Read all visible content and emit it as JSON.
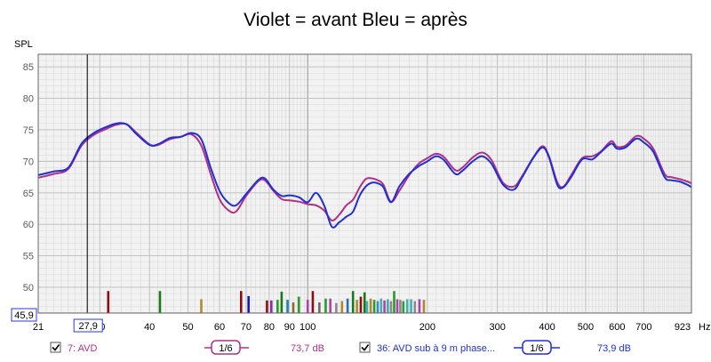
{
  "colors": {
    "before": "#b03085",
    "after": "#1f2fd4",
    "plot_bg": "#f2f2f2",
    "grid_major": "#bdbdbd",
    "grid_minor": "#d8d8d8",
    "label_text": "#3a3ad0"
  },
  "chart_data": {
    "type": "line",
    "title": "Violet = avant Bleu = après",
    "ylabel": "SPL",
    "xunit": "Hz",
    "x_scale": "log",
    "xlim": [
      21,
      923
    ],
    "ylim": [
      45.9,
      87
    ],
    "cursor": {
      "x_label": "27,9",
      "y_label": "45,9",
      "x": 27.9
    },
    "x_ticks": [
      {
        "v": 21,
        "label": "21"
      },
      {
        "v": 30,
        "label": "30"
      },
      {
        "v": 40,
        "label": "40"
      },
      {
        "v": 50,
        "label": "50"
      },
      {
        "v": 60,
        "label": "60"
      },
      {
        "v": 70,
        "label": "70"
      },
      {
        "v": 80,
        "label": "80"
      },
      {
        "v": 90,
        "label": "90"
      },
      {
        "v": 100,
        "label": "100"
      },
      {
        "v": 200,
        "label": "200"
      },
      {
        "v": 300,
        "label": "300"
      },
      {
        "v": 400,
        "label": "400"
      },
      {
        "v": 500,
        "label": "500"
      },
      {
        "v": 600,
        "label": "600"
      },
      {
        "v": 700,
        "label": "700"
      },
      {
        "v": 923,
        "label": "923"
      }
    ],
    "y_ticks": [
      50,
      55,
      60,
      65,
      70,
      75,
      80,
      85
    ],
    "series": [
      {
        "name": "7: AVD",
        "color_key": "before",
        "points": [
          [
            21,
            67.4
          ],
          [
            23,
            68.0
          ],
          [
            25,
            68.8
          ],
          [
            27,
            72.5
          ],
          [
            29,
            74.2
          ],
          [
            31,
            75.1
          ],
          [
            33,
            75.8
          ],
          [
            35,
            75.9
          ],
          [
            37,
            74.6
          ],
          [
            40,
            72.7
          ],
          [
            42,
            72.6
          ],
          [
            45,
            73.5
          ],
          [
            48,
            73.9
          ],
          [
            51,
            74.3
          ],
          [
            54,
            72.5
          ],
          [
            57,
            68.0
          ],
          [
            60,
            64.0
          ],
          [
            63,
            62.3
          ],
          [
            66,
            62.0
          ],
          [
            70,
            64.5
          ],
          [
            75,
            66.8
          ],
          [
            78,
            67.0
          ],
          [
            82,
            65.3
          ],
          [
            86,
            64.0
          ],
          [
            90,
            63.8
          ],
          [
            95,
            63.6
          ],
          [
            100,
            63.2
          ],
          [
            105,
            63.0
          ],
          [
            110,
            62.2
          ],
          [
            115,
            60.6
          ],
          [
            120,
            61.5
          ],
          [
            125,
            63.0
          ],
          [
            130,
            63.9
          ],
          [
            135,
            65.8
          ],
          [
            140,
            67.2
          ],
          [
            145,
            67.3
          ],
          [
            150,
            67.0
          ],
          [
            155,
            66.3
          ],
          [
            162,
            63.6
          ],
          [
            170,
            65.3
          ],
          [
            180,
            67.8
          ],
          [
            190,
            69.6
          ],
          [
            200,
            70.5
          ],
          [
            210,
            71.2
          ],
          [
            220,
            70.7
          ],
          [
            235,
            68.6
          ],
          [
            245,
            69.0
          ],
          [
            260,
            70.6
          ],
          [
            275,
            71.4
          ],
          [
            290,
            70.2
          ],
          [
            310,
            66.6
          ],
          [
            330,
            66.0
          ],
          [
            345,
            67.5
          ],
          [
            370,
            70.7
          ],
          [
            390,
            72.4
          ],
          [
            405,
            70.7
          ],
          [
            425,
            66.6
          ],
          [
            440,
            66.0
          ],
          [
            460,
            67.8
          ],
          [
            490,
            70.5
          ],
          [
            520,
            70.8
          ],
          [
            545,
            71.5
          ],
          [
            580,
            73.2
          ],
          [
            600,
            72.3
          ],
          [
            630,
            72.5
          ],
          [
            670,
            74.0
          ],
          [
            700,
            73.6
          ],
          [
            740,
            72.0
          ],
          [
            790,
            68.0
          ],
          [
            820,
            67.5
          ],
          [
            860,
            67.2
          ],
          [
            900,
            66.8
          ],
          [
            923,
            66.5
          ]
        ]
      },
      {
        "name": "36: AVD sub à 9 m phase...",
        "color_key": "after",
        "points": [
          [
            21,
            67.8
          ],
          [
            23,
            68.4
          ],
          [
            25,
            69.0
          ],
          [
            27,
            72.8
          ],
          [
            29,
            74.5
          ],
          [
            31,
            75.4
          ],
          [
            33,
            76.0
          ],
          [
            35,
            75.9
          ],
          [
            37,
            74.4
          ],
          [
            40,
            72.6
          ],
          [
            42,
            72.7
          ],
          [
            45,
            73.7
          ],
          [
            48,
            73.9
          ],
          [
            51,
            74.5
          ],
          [
            54,
            73.5
          ],
          [
            57,
            69.0
          ],
          [
            60,
            65.3
          ],
          [
            63,
            63.5
          ],
          [
            66,
            63.0
          ],
          [
            70,
            64.8
          ],
          [
            75,
            67.0
          ],
          [
            78,
            67.3
          ],
          [
            82,
            65.5
          ],
          [
            86,
            64.5
          ],
          [
            90,
            64.6
          ],
          [
            95,
            64.3
          ],
          [
            100,
            63.5
          ],
          [
            105,
            65.0
          ],
          [
            110,
            63.0
          ],
          [
            115,
            59.6
          ],
          [
            120,
            60.3
          ],
          [
            125,
            61.2
          ],
          [
            130,
            62.0
          ],
          [
            135,
            64.5
          ],
          [
            140,
            66.0
          ],
          [
            145,
            66.6
          ],
          [
            150,
            66.5
          ],
          [
            155,
            65.9
          ],
          [
            162,
            63.5
          ],
          [
            170,
            66.0
          ],
          [
            180,
            68.0
          ],
          [
            190,
            69.2
          ],
          [
            200,
            70.0
          ],
          [
            210,
            70.8
          ],
          [
            220,
            70.2
          ],
          [
            235,
            68.0
          ],
          [
            245,
            68.5
          ],
          [
            260,
            70.0
          ],
          [
            275,
            70.8
          ],
          [
            290,
            69.6
          ],
          [
            310,
            66.3
          ],
          [
            330,
            65.5
          ],
          [
            345,
            67.3
          ],
          [
            370,
            70.6
          ],
          [
            390,
            72.2
          ],
          [
            405,
            70.5
          ],
          [
            425,
            66.2
          ],
          [
            440,
            65.9
          ],
          [
            460,
            67.5
          ],
          [
            490,
            70.3
          ],
          [
            520,
            70.3
          ],
          [
            545,
            71.4
          ],
          [
            580,
            72.8
          ],
          [
            600,
            72.0
          ],
          [
            630,
            72.2
          ],
          [
            670,
            73.6
          ],
          [
            700,
            73.0
          ],
          [
            740,
            71.5
          ],
          [
            790,
            67.5
          ],
          [
            820,
            67.0
          ],
          [
            860,
            66.8
          ],
          [
            900,
            66.3
          ],
          [
            923,
            65.9
          ]
        ]
      }
    ],
    "markers": [
      {
        "f": 31.5,
        "top": 49.4,
        "color": "#8a0e14"
      },
      {
        "f": 42.5,
        "top": 49.4,
        "color": "#1a7a1a"
      },
      {
        "f": 54,
        "top": 48.1,
        "color": "#b08a2a"
      },
      {
        "f": 68,
        "top": 49.4,
        "color": "#8a0e14"
      },
      {
        "f": 71,
        "top": 48.6,
        "color": "#1a1ab0"
      },
      {
        "f": 79,
        "top": 47.9,
        "color": "#8a0e14"
      },
      {
        "f": 81,
        "top": 47.9,
        "color": "#8030a0"
      },
      {
        "f": 84,
        "top": 48.0,
        "color": "#2a9a2a"
      },
      {
        "f": 86,
        "top": 49.3,
        "color": "#1a7a1a"
      },
      {
        "f": 89,
        "top": 48.0,
        "color": "#2080b0"
      },
      {
        "f": 92,
        "top": 47.6,
        "color": "#8a6a2a"
      },
      {
        "f": 95,
        "top": 48.5,
        "color": "#2a9a2a"
      },
      {
        "f": 100,
        "top": 48.0,
        "color": "#b040b0"
      },
      {
        "f": 103,
        "top": 49.4,
        "color": "#8a0e14"
      },
      {
        "f": 107,
        "top": 47.6,
        "color": "#6a6a6a"
      },
      {
        "f": 111,
        "top": 48.2,
        "color": "#2a9a2a"
      },
      {
        "f": 114,
        "top": 48.2,
        "color": "#b040b0"
      },
      {
        "f": 118,
        "top": 47.5,
        "color": "#8a8a8a"
      },
      {
        "f": 122,
        "top": 47.8,
        "color": "#b08a2a"
      },
      {
        "f": 126,
        "top": 48.2,
        "color": "#2a70b0"
      },
      {
        "f": 130,
        "top": 49.4,
        "color": "#1a7a1a"
      },
      {
        "f": 133,
        "top": 48.0,
        "color": "#b08a2a"
      },
      {
        "f": 136,
        "top": 48.5,
        "color": "#8a0e14"
      },
      {
        "f": 139,
        "top": 49.2,
        "color": "#1a7a1a"
      },
      {
        "f": 141,
        "top": 47.8,
        "color": "#40b0b0"
      },
      {
        "f": 144,
        "top": 48.2,
        "color": "#b08a2a"
      },
      {
        "f": 147,
        "top": 48.0,
        "color": "#2a9a2a"
      },
      {
        "f": 150,
        "top": 47.8,
        "color": "#3a8ac0"
      },
      {
        "f": 153,
        "top": 48.2,
        "color": "#40b0b0"
      },
      {
        "f": 156,
        "top": 47.9,
        "color": "#b040b0"
      },
      {
        "f": 159,
        "top": 48.1,
        "color": "#40b0b0"
      },
      {
        "f": 162,
        "top": 47.8,
        "color": "#8a8a8a"
      },
      {
        "f": 165,
        "top": 49.4,
        "color": "#2a9a2a"
      },
      {
        "f": 168,
        "top": 48.1,
        "color": "#b040b0"
      },
      {
        "f": 171,
        "top": 48.0,
        "color": "#8a8a8a"
      },
      {
        "f": 174,
        "top": 47.8,
        "color": "#2a9a2a"
      },
      {
        "f": 178,
        "top": 48.1,
        "color": "#40b0b0"
      },
      {
        "f": 182,
        "top": 48.1,
        "color": "#40b0b0"
      },
      {
        "f": 186,
        "top": 47.8,
        "color": "#8a8a8a"
      },
      {
        "f": 191,
        "top": 48.1,
        "color": "#b040b0"
      },
      {
        "f": 196,
        "top": 48.0,
        "color": "#b08a2a"
      }
    ]
  },
  "legend": {
    "items": [
      {
        "label": "7: AVD",
        "smoothing": "1/6",
        "level": "73,7 dB",
        "color_key": "before",
        "checked": true
      },
      {
        "label": "36: AVD sub à 9 m phase...",
        "smoothing": "1/6",
        "level": "73,9 dB",
        "color_key": "after",
        "checked": true
      }
    ]
  }
}
